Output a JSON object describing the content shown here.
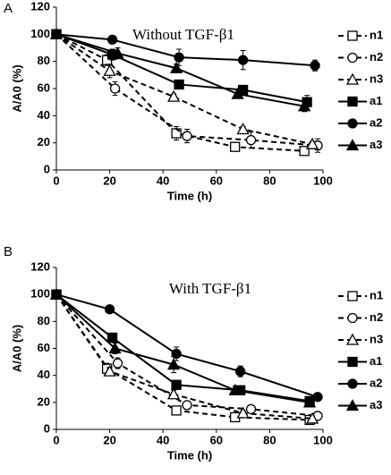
{
  "chart_data": [
    {
      "type": "line",
      "panel_label": "A",
      "annotation": "Without TGF-β1",
      "xlabel": "Time (h)",
      "ylabel": "A/A0 (%)",
      "xlim": [
        0,
        100
      ],
      "xticks": [
        0,
        20,
        40,
        60,
        80,
        100
      ],
      "ylim": [
        0,
        120
      ],
      "yticks": [
        0,
        20,
        40,
        60,
        80,
        100,
        120
      ],
      "series": [
        {
          "name": "n1",
          "color": "#000000",
          "dashed": true,
          "marker": "square",
          "filled": false,
          "x": [
            0,
            19,
            45,
            67,
            93
          ],
          "values": [
            100,
            81,
            27,
            17,
            14
          ],
          "errors": [
            0,
            4,
            5,
            3,
            2
          ]
        },
        {
          "name": "n2",
          "color": "#000000",
          "dashed": true,
          "marker": "circle",
          "filled": false,
          "x": [
            0,
            22,
            49,
            73,
            98
          ],
          "values": [
            100,
            60,
            25,
            22,
            18
          ],
          "errors": [
            0,
            5,
            5,
            6,
            5
          ]
        },
        {
          "name": "n3",
          "color": "#000000",
          "dashed": true,
          "marker": "triangle",
          "filled": false,
          "x": [
            0,
            20,
            44,
            70,
            96
          ],
          "values": [
            100,
            73,
            54,
            30,
            19
          ],
          "errors": [
            0,
            5,
            2,
            2,
            2
          ]
        },
        {
          "name": "a1",
          "color": "#000000",
          "dashed": false,
          "marker": "square",
          "filled": true,
          "x": [
            0,
            21,
            46,
            70,
            94
          ],
          "values": [
            100,
            85,
            63,
            59,
            50
          ],
          "errors": [
            0,
            4,
            2,
            3,
            5
          ]
        },
        {
          "name": "a2",
          "color": "#000000",
          "dashed": false,
          "marker": "circle",
          "filled": true,
          "x": [
            0,
            21,
            46,
            70,
            97
          ],
          "values": [
            100,
            96,
            83,
            81,
            77
          ],
          "errors": [
            0,
            2,
            6,
            7,
            4
          ]
        },
        {
          "name": "a3",
          "color": "#000000",
          "dashed": false,
          "marker": "triangle",
          "filled": true,
          "x": [
            0,
            23,
            45,
            68,
            93
          ],
          "values": [
            100,
            86,
            75,
            56,
            47
          ],
          "errors": [
            0,
            4,
            3,
            3,
            4
          ]
        }
      ]
    },
    {
      "type": "line",
      "panel_label": "B",
      "annotation": "With TGF-β1",
      "xlabel": "Time (h)",
      "ylabel": "A/A0 (%)",
      "xlim": [
        0,
        100
      ],
      "xticks": [
        0,
        20,
        40,
        60,
        80,
        100
      ],
      "ylim": [
        0,
        120
      ],
      "yticks": [
        0,
        20,
        40,
        60,
        80,
        100,
        120
      ],
      "series": [
        {
          "name": "n1",
          "color": "#000000",
          "dashed": true,
          "marker": "square",
          "filled": false,
          "x": [
            0,
            19,
            45,
            67,
            95
          ],
          "values": [
            100,
            45,
            14,
            9,
            7
          ],
          "errors": [
            0,
            4,
            2,
            2,
            2
          ]
        },
        {
          "name": "n2",
          "color": "#000000",
          "dashed": true,
          "marker": "circle",
          "filled": false,
          "x": [
            0,
            23,
            49,
            73,
            98
          ],
          "values": [
            100,
            49,
            18,
            15,
            10
          ],
          "errors": [
            0,
            4,
            3,
            3,
            2
          ]
        },
        {
          "name": "n3",
          "color": "#000000",
          "dashed": true,
          "marker": "triangle",
          "filled": false,
          "x": [
            0,
            20,
            44,
            70,
            96
          ],
          "values": [
            100,
            43,
            26,
            12,
            8
          ],
          "errors": [
            0,
            3,
            3,
            2,
            2
          ]
        },
        {
          "name": "a1",
          "color": "#000000",
          "dashed": false,
          "marker": "square",
          "filled": true,
          "x": [
            0,
            21,
            45,
            69,
            95
          ],
          "values": [
            100,
            68,
            33,
            29,
            21
          ],
          "errors": [
            0,
            3,
            3,
            2,
            2
          ]
        },
        {
          "name": "a2",
          "color": "#000000",
          "dashed": false,
          "marker": "circle",
          "filled": true,
          "x": [
            0,
            20,
            45,
            69,
            98
          ],
          "values": [
            100,
            89,
            56,
            43,
            24
          ],
          "errors": [
            0,
            2,
            5,
            4,
            2
          ]
        },
        {
          "name": "a3",
          "color": "#000000",
          "dashed": false,
          "marker": "triangle",
          "filled": true,
          "x": [
            0,
            22,
            44,
            67,
            95
          ],
          "values": [
            100,
            60,
            48,
            29,
            20
          ],
          "errors": [
            0,
            4,
            6,
            3,
            2
          ]
        }
      ]
    }
  ]
}
